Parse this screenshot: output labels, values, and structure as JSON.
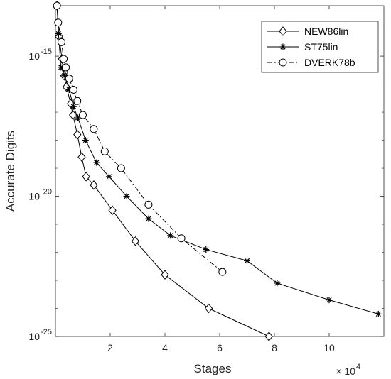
{
  "chart_data": {
    "type": "line",
    "xlabel": "Stages",
    "ylabel": "Accurate Digits",
    "x_multiplier_label": "× 10",
    "x_multiplier_exponent": "4",
    "x_scale": "linear",
    "y_scale": "log",
    "xlim": [
      0,
      120000
    ],
    "ylim_exponent": [
      -25,
      -13.2
    ],
    "x_ticks": [
      20000,
      40000,
      60000,
      80000,
      100000
    ],
    "x_tick_labels": [
      "2",
      "4",
      "6",
      "8",
      "10"
    ],
    "y_tick_exponents": [
      -25,
      -20,
      -15
    ],
    "y_tick_labels": [
      {
        "base": "10",
        "exp": "-25"
      },
      {
        "base": "10",
        "exp": "-20"
      },
      {
        "base": "10",
        "exp": "-15"
      }
    ],
    "grid": false,
    "legend_position": "top-right",
    "series": [
      {
        "name": "NEW86lin",
        "marker": "diamond",
        "line_style": "solid",
        "color": "#000000",
        "x": [
          560,
          1280,
          2400,
          3200,
          4000,
          5600,
          6400,
          8000,
          9600,
          11200,
          14000,
          20800,
          29200,
          40000,
          56000,
          78000
        ],
        "y_exp": [
          -13.2,
          -14.3,
          -15.1,
          -15.7,
          -16.1,
          -16.7,
          -17.1,
          -17.8,
          -18.6,
          -19.3,
          -19.6,
          -20.5,
          -21.6,
          -22.8,
          -24.0,
          -25.0
        ]
      },
      {
        "name": "ST75lin",
        "marker": "asterisk",
        "line_style": "solid",
        "color": "#000000",
        "x": [
          560,
          1120,
          2000,
          3400,
          5000,
          6600,
          8200,
          11000,
          15000,
          19600,
          26000,
          34000,
          42000,
          55000,
          70000,
          81000,
          100000,
          118000
        ],
        "y_exp": [
          -13.2,
          -14.2,
          -15.4,
          -15.7,
          -16.2,
          -16.8,
          -17.2,
          -18.0,
          -18.8,
          -19.3,
          -20.0,
          -20.8,
          -21.4,
          -21.9,
          -22.3,
          -23.1,
          -23.7,
          -24.2
        ]
      },
      {
        "name": "DVERK78b",
        "marker": "circle",
        "line_style": "dash-dot",
        "color": "#000000",
        "x": [
          560,
          1000,
          2200,
          3000,
          3800,
          5000,
          6600,
          8000,
          10000,
          14000,
          18000,
          24000,
          34000,
          46000,
          61000
        ],
        "y_exp": [
          -13.2,
          -13.8,
          -14.5,
          -15.1,
          -15.4,
          -15.8,
          -16.2,
          -16.6,
          -17.1,
          -17.6,
          -18.4,
          -19.0,
          -20.3,
          -21.5,
          -22.7
        ]
      }
    ]
  }
}
